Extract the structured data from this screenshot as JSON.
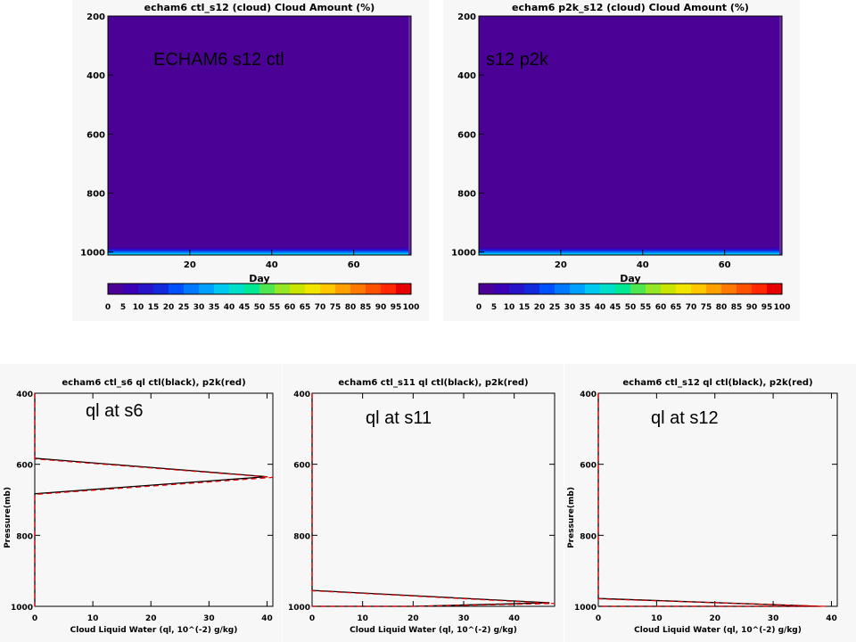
{
  "slide_labels": {
    "echam_ctl": "ECHAM6 s12 ctl",
    "p2k": "s12 p2k",
    "ql_s6": "ql at s6",
    "ql_s11": "ql at s11",
    "ql_s12": "ql at s12"
  },
  "colors": {
    "field": "#4b0096",
    "ctl_line": "#000000",
    "p2k_line": "#e00000",
    "panel_bg": "#f7f7f7",
    "colorbar": [
      "#4b0096",
      "#3c00b4",
      "#2814c8",
      "#1428dc",
      "#0050ff",
      "#0078ff",
      "#00a0ff",
      "#00c8f0",
      "#00e0c8",
      "#00e896",
      "#50e650",
      "#96e628",
      "#c8e600",
      "#f0e600",
      "#ffc800",
      "#ffa000",
      "#ff7800",
      "#ff5000",
      "#ff2800",
      "#e60000"
    ]
  },
  "chart_data": [
    {
      "type": "heatmap",
      "title": "echam6 ctl_s12  (cloud)  Cloud Amount (%)",
      "xlabel": "Day",
      "ylabel": "",
      "x_ticks": [
        "20",
        "40",
        "60"
      ],
      "y_ticks": [
        "200",
        "400",
        "600",
        "800",
        "1000"
      ],
      "xlim": [
        0,
        74
      ],
      "ylim": [
        1010,
        200
      ],
      "field_value": 0,
      "surface_band": {
        "from_pressure": 985,
        "to_pressure": 1010,
        "values": [
          5,
          35
        ]
      },
      "colorbar_ticks": [
        "0",
        "5",
        "10",
        "15",
        "20",
        "25",
        "30",
        "35",
        "40",
        "45",
        "50",
        "55",
        "60",
        "65",
        "70",
        "75",
        "80",
        "85",
        "90",
        "95",
        "100"
      ]
    },
    {
      "type": "heatmap",
      "title": "echam6 p2k_s12  (cloud)  Cloud Amount (%)",
      "xlabel": "Day",
      "ylabel": "",
      "x_ticks": [
        "20",
        "40",
        "60"
      ],
      "y_ticks": [
        "200",
        "400",
        "600",
        "800",
        "1000"
      ],
      "xlim": [
        0,
        74
      ],
      "ylim": [
        1010,
        200
      ],
      "field_value": 0,
      "surface_band": {
        "from_pressure": 985,
        "to_pressure": 1010,
        "values": [
          5,
          35
        ]
      },
      "colorbar_ticks": [
        "0",
        "5",
        "10",
        "15",
        "20",
        "25",
        "30",
        "35",
        "40",
        "45",
        "50",
        "55",
        "60",
        "65",
        "70",
        "75",
        "80",
        "85",
        "90",
        "95",
        "100"
      ]
    },
    {
      "type": "line",
      "title": "echam6 ctl_s6 ql ctl(black), p2k(red)",
      "xlabel": "Cloud Liquid Water (ql, 10^(-2) g/kg)",
      "ylabel": "Pressure(mb)",
      "x_ticks": [
        "0",
        "10",
        "20",
        "30",
        "40"
      ],
      "y_ticks": [
        "400",
        "600",
        "800",
        "1000"
      ],
      "xlim": [
        0,
        41
      ],
      "ylim": [
        1000,
        400
      ],
      "series": [
        {
          "x": [
            0,
            0,
            40,
            0,
            0
          ],
          "y": [
            400,
            583,
            635,
            683,
            1000
          ]
        },
        {
          "x": [
            0,
            0,
            41,
            0,
            0
          ],
          "y": [
            400,
            585,
            637,
            685,
            1000
          ]
        }
      ]
    },
    {
      "type": "line",
      "title": "echam6 ctl_s11 ql ctl(black), p2k(red)",
      "xlabel": "Cloud Liquid Water (ql, 10^(-2) g/kg)",
      "ylabel": "",
      "x_ticks": [
        "0",
        "10",
        "20",
        "30",
        "40"
      ],
      "y_ticks": [
        "400",
        "600",
        "800",
        "1000"
      ],
      "xlim": [
        0,
        48
      ],
      "ylim": [
        1000,
        400
      ],
      "series": [
        {
          "x": [
            0,
            0,
            47,
            20,
            0
          ],
          "y": [
            400,
            955,
            990,
            1000,
            1000
          ]
        },
        {
          "x": [
            0,
            0,
            48,
            20,
            0
          ],
          "y": [
            400,
            956,
            992,
            1000,
            1000
          ]
        }
      ]
    },
    {
      "type": "line",
      "title": "echam6 ctl_s12 ql ctl(black), p2k(red)",
      "xlabel": "Cloud Liquid Water (ql, 10^(-2) g/kg)",
      "ylabel": "Pressure(mb)",
      "x_ticks": [
        "0",
        "10",
        "20",
        "30",
        "40"
      ],
      "y_ticks": [
        "400",
        "600",
        "800",
        "1000"
      ],
      "xlim": [
        0,
        41
      ],
      "ylim": [
        1000,
        400
      ],
      "series": [
        {
          "x": [
            0,
            0,
            38,
            0
          ],
          "y": [
            400,
            978,
            1000,
            1000
          ]
        },
        {
          "x": [
            0,
            0,
            39,
            0
          ],
          "y": [
            400,
            979,
            1000,
            1000
          ]
        }
      ]
    }
  ]
}
